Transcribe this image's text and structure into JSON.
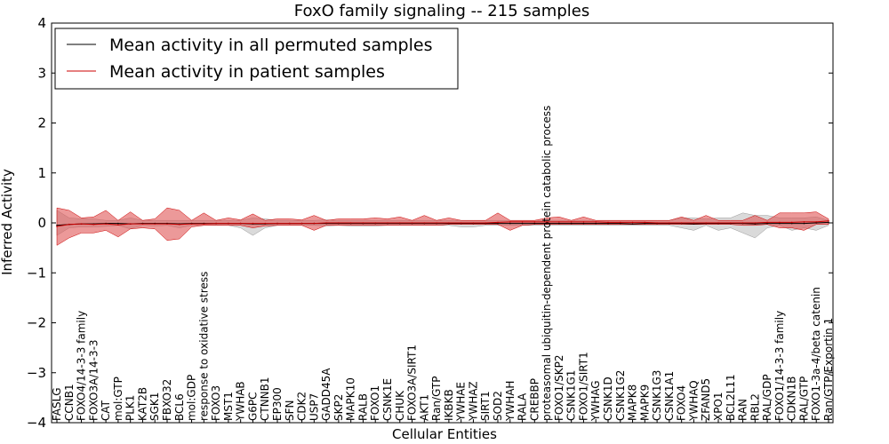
{
  "chart_data": {
    "type": "line",
    "title": "FoxO family signaling -- 215 samples",
    "xlabel": "Cellular Entities",
    "ylabel": "Inferred Activity",
    "ylim": [
      -4,
      4
    ],
    "yticks": [
      4,
      3,
      2,
      1,
      0,
      -1,
      -2,
      -3,
      -4
    ],
    "ytick_labels": [
      "4",
      "3",
      "2",
      "1",
      "0",
      "−1",
      "−2",
      "−3",
      "−4"
    ],
    "legend": {
      "placement": "top-left",
      "entries": [
        {
          "label": "Mean activity in all permuted samples",
          "color": "#000000"
        },
        {
          "label": "Mean activity in patient samples",
          "color": "#cc0000"
        }
      ]
    },
    "colors": {
      "permuted_line": "#000000",
      "patient_line": "#cc0000",
      "patient_band": "#e05555",
      "permuted_band": "#bbbbbb"
    },
    "categories": [
      "FASLG",
      "CCNB1",
      "FOXO4/14-3-3 family",
      "FOXO3A/14-3-3",
      "CAT",
      "mol:GTP",
      "PLK1",
      "KAT2B",
      "SGK1",
      "FBXO32",
      "BCL6",
      "mol:GDP",
      "response to oxidative stress",
      "FOXO3",
      "MST1",
      "YWHAB",
      "G6PC",
      "CTNNB1",
      "EP300",
      "SFN",
      "CDK2",
      "USP7",
      "GADD45A",
      "SKP2",
      "MAPK10",
      "RALB",
      "FOXO1",
      "CSNK1E",
      "CHUK",
      "FOXO3A/SIRT1",
      "AKT1",
      "Ran/GTP",
      "IKBKB",
      "YWHAE",
      "YWHAZ",
      "SIRT1",
      "SOD2",
      "YWHAH",
      "RALA",
      "CREBBP",
      "proteasomal ubiquitin-dependent protein catabolic process",
      "FOXO1/SKP2",
      "CSNK1G1",
      "FOXO1/SIRT1",
      "YWHAG",
      "CSNK1D",
      "CSNK1G2",
      "MAPK8",
      "MAPK9",
      "CSNK1G3",
      "CSNK1A1",
      "FOXO4",
      "YWHAQ",
      "ZFAND5",
      "XPO1",
      "BCL2L11",
      "RAN",
      "RBL2",
      "RAL/GDP",
      "FOXO1/14-3-3 family",
      "CDKN1B",
      "RAL/GTP",
      "FOXO1-3a-4/beta catenin",
      "Ran/GTP/Exportin 1"
    ],
    "series": [
      {
        "name": "Mean activity in all permuted samples",
        "values": [
          -0.05,
          -0.03,
          -0.02,
          -0.02,
          -0.01,
          -0.01,
          -0.02,
          -0.01,
          -0.01,
          -0.01,
          -0.02,
          -0.01,
          -0.01,
          -0.01,
          -0.01,
          -0.01,
          -0.02,
          -0.02,
          -0.01,
          -0.01,
          -0.01,
          -0.01,
          -0.01,
          -0.01,
          -0.01,
          -0.01,
          -0.01,
          -0.01,
          -0.01,
          -0.01,
          -0.01,
          -0.01,
          -0.01,
          -0.01,
          -0.01,
          -0.01,
          -0.01,
          -0.01,
          -0.01,
          -0.01,
          -0.01,
          -0.01,
          -0.01,
          -0.01,
          -0.01,
          -0.01,
          -0.01,
          -0.02,
          -0.01,
          -0.01,
          -0.01,
          -0.01,
          -0.02,
          -0.01,
          -0.01,
          -0.01,
          -0.01,
          -0.02,
          -0.01,
          -0.01,
          -0.01,
          -0.01,
          0.0,
          0.01
        ],
        "band_lower": [
          -0.25,
          -0.1,
          -0.08,
          -0.08,
          -0.07,
          -0.05,
          -0.12,
          -0.05,
          -0.06,
          -0.05,
          -0.1,
          -0.05,
          -0.05,
          -0.04,
          -0.05,
          -0.1,
          -0.25,
          -0.1,
          -0.05,
          -0.05,
          -0.05,
          -0.05,
          -0.06,
          -0.05,
          -0.06,
          -0.06,
          -0.06,
          -0.05,
          -0.05,
          -0.05,
          -0.05,
          -0.05,
          -0.05,
          -0.08,
          -0.08,
          -0.05,
          -0.05,
          -0.05,
          -0.05,
          -0.05,
          -0.05,
          -0.05,
          -0.05,
          -0.05,
          -0.05,
          -0.05,
          -0.05,
          -0.05,
          -0.05,
          -0.05,
          -0.05,
          -0.1,
          -0.15,
          -0.05,
          -0.15,
          -0.1,
          -0.2,
          -0.3,
          -0.1,
          -0.05,
          -0.15,
          -0.1,
          -0.15,
          -0.05
        ],
        "band_upper": [
          0.25,
          0.1,
          0.08,
          0.08,
          0.05,
          0.05,
          0.1,
          0.05,
          0.05,
          0.05,
          0.05,
          0.05,
          0.05,
          0.05,
          0.05,
          0.05,
          0.1,
          0.08,
          0.05,
          0.05,
          0.05,
          0.05,
          0.06,
          0.05,
          0.05,
          0.05,
          0.05,
          0.05,
          0.05,
          0.05,
          0.05,
          0.05,
          0.05,
          0.05,
          0.05,
          0.05,
          0.05,
          0.05,
          0.05,
          0.05,
          0.05,
          0.05,
          0.05,
          0.05,
          0.05,
          0.05,
          0.05,
          0.05,
          0.05,
          0.05,
          0.05,
          0.1,
          0.1,
          0.08,
          0.1,
          0.1,
          0.2,
          0.15,
          0.15,
          0.1,
          0.1,
          0.1,
          0.12,
          0.05
        ]
      },
      {
        "name": "Mean activity in patient samples",
        "values": [
          -0.07,
          -0.03,
          -0.02,
          -0.03,
          -0.02,
          -0.04,
          -0.02,
          -0.02,
          -0.02,
          -0.02,
          -0.03,
          -0.02,
          -0.02,
          -0.01,
          -0.01,
          -0.01,
          -0.01,
          -0.01,
          -0.01,
          -0.01,
          -0.01,
          -0.01,
          0.0,
          0.0,
          0.0,
          0.0,
          0.0,
          0.0,
          0.0,
          0.0,
          0.0,
          0.0,
          0.0,
          0.0,
          0.0,
          0.0,
          0.01,
          0.02,
          0.02,
          0.02,
          0.02,
          0.02,
          0.02,
          0.02,
          0.02,
          0.01,
          0.01,
          0.01,
          0.01,
          0.0,
          0.0,
          0.0,
          0.0,
          0.0,
          0.0,
          0.0,
          0.0,
          0.0,
          0.01,
          0.01,
          0.01,
          0.02,
          0.02,
          0.04
        ],
        "band_lower": [
          -0.45,
          -0.3,
          -0.2,
          -0.2,
          -0.15,
          -0.28,
          -0.12,
          -0.1,
          -0.12,
          -0.35,
          -0.32,
          -0.08,
          -0.05,
          -0.05,
          -0.05,
          -0.05,
          -0.1,
          -0.06,
          -0.05,
          -0.05,
          -0.05,
          -0.15,
          -0.05,
          -0.05,
          -0.05,
          -0.05,
          -0.05,
          -0.05,
          -0.05,
          -0.05,
          -0.05,
          -0.05,
          -0.03,
          -0.03,
          -0.03,
          -0.03,
          -0.03,
          -0.15,
          -0.05,
          -0.03,
          -0.03,
          -0.03,
          -0.03,
          -0.03,
          -0.03,
          -0.03,
          -0.03,
          -0.03,
          -0.03,
          -0.03,
          -0.03,
          -0.03,
          -0.03,
          -0.03,
          -0.03,
          -0.03,
          -0.05,
          -0.05,
          -0.03,
          -0.1,
          -0.1,
          -0.15,
          -0.03,
          -0.03
        ],
        "band_upper": [
          0.3,
          0.25,
          0.1,
          0.12,
          0.25,
          0.05,
          0.22,
          0.05,
          0.08,
          0.3,
          0.25,
          0.05,
          0.2,
          0.05,
          0.1,
          0.06,
          0.18,
          0.05,
          0.08,
          0.08,
          0.06,
          0.15,
          0.05,
          0.08,
          0.08,
          0.08,
          0.1,
          0.08,
          0.12,
          0.05,
          0.15,
          0.05,
          0.1,
          0.05,
          0.05,
          0.05,
          0.2,
          0.05,
          0.05,
          0.05,
          0.1,
          0.12,
          0.05,
          0.12,
          0.05,
          0.05,
          0.05,
          0.05,
          0.05,
          0.05,
          0.05,
          0.12,
          0.05,
          0.15,
          0.05,
          0.05,
          0.05,
          0.15,
          0.05,
          0.2,
          0.2,
          0.2,
          0.22,
          0.08
        ]
      }
    ]
  }
}
